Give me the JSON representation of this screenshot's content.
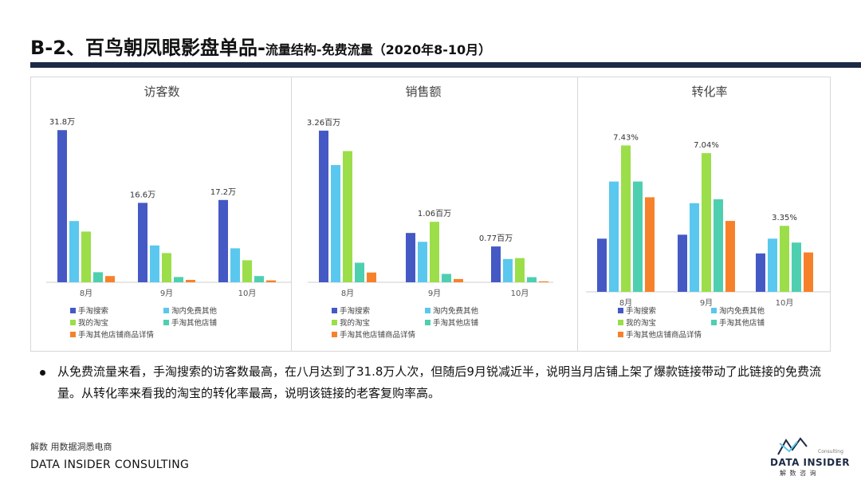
{
  "header": {
    "title_main": "B-2、百鸟朝凤眼影盘单品-",
    "title_sub": "流量结构-免费流量",
    "title_period": "（2020年8-10月）"
  },
  "colors": {
    "series": [
      "#4559c5",
      "#5ac8ee",
      "#9bde4a",
      "#4ecfb0",
      "#f7812a"
    ],
    "rule": "#1d2a45"
  },
  "chart_data": [
    {
      "type": "bar",
      "title": "访客数",
      "categories": [
        "8月",
        "9月",
        "10月"
      ],
      "series": [
        {
          "name": "手淘搜索",
          "values": [
            31.8,
            16.6,
            17.2
          ]
        },
        {
          "name": "淘内免费其他",
          "values": [
            12.8,
            7.7,
            7.1
          ]
        },
        {
          "name": "我的淘宝",
          "values": [
            10.6,
            6.1,
            4.6
          ]
        },
        {
          "name": "手淘其他店铺",
          "values": [
            2.1,
            1.1,
            1.3
          ]
        },
        {
          "name": "手淘其他店铺商品详情",
          "values": [
            1.3,
            0.5,
            0.4
          ]
        }
      ],
      "data_labels": [
        "31.8万",
        "16.6万",
        "17.2万"
      ],
      "ylim": [
        0,
        35
      ]
    },
    {
      "type": "bar",
      "title": "销售额",
      "categories": [
        "8月",
        "9月",
        "10月"
      ],
      "series": [
        {
          "name": "手淘搜索",
          "values": [
            3.26,
            1.06,
            0.77
          ]
        },
        {
          "name": "淘内免费其他",
          "values": [
            2.52,
            0.87,
            0.5
          ]
        },
        {
          "name": "我的淘宝",
          "values": [
            2.82,
            1.3,
            0.52
          ]
        },
        {
          "name": "手淘其他店铺",
          "values": [
            0.42,
            0.18,
            0.11
          ]
        },
        {
          "name": "手淘其他店铺商品详情",
          "values": [
            0.21,
            0.07,
            0.02
          ]
        }
      ],
      "data_labels": [
        "3.26百万",
        "1.06百万",
        "0.77百万"
      ],
      "ylim": [
        0,
        3.6
      ]
    },
    {
      "type": "bar",
      "title": "转化率",
      "categories": [
        "8月",
        "9月",
        "10月"
      ],
      "series": [
        {
          "name": "手淘搜索",
          "values": [
            2.7,
            2.9,
            1.95
          ]
        },
        {
          "name": "淘内免费其他",
          "values": [
            5.6,
            4.5,
            2.7
          ]
        },
        {
          "name": "我的淘宝",
          "values": [
            7.43,
            7.04,
            3.35
          ]
        },
        {
          "name": "手淘其他店铺",
          "values": [
            5.6,
            4.7,
            2.5
          ]
        },
        {
          "name": "手淘其他店铺商品详情",
          "values": [
            4.8,
            3.6,
            2.0
          ]
        }
      ],
      "data_labels": [
        "7.43%",
        "7.04%",
        "3.35%"
      ],
      "ylim": [
        0,
        8.5
      ]
    }
  ],
  "bullet": {
    "text": "从免费流量来看，手淘搜索的访客数最高，在八月达到了31.8万人次，但随后9月锐减近半，说明当月店铺上架了爆款链接带动了此链接的免费流量。从转化率来看我的淘宝的转化率最高，说明该链接的老客复购率高。"
  },
  "footer": {
    "tagline": "解数 用数据洞悉电商",
    "company": "DATA INSIDER CONSULTING"
  },
  "logo": {
    "brand": "DATA INSIDER",
    "tag": "Consulting",
    "brand_cn": "解 数 咨 询"
  }
}
